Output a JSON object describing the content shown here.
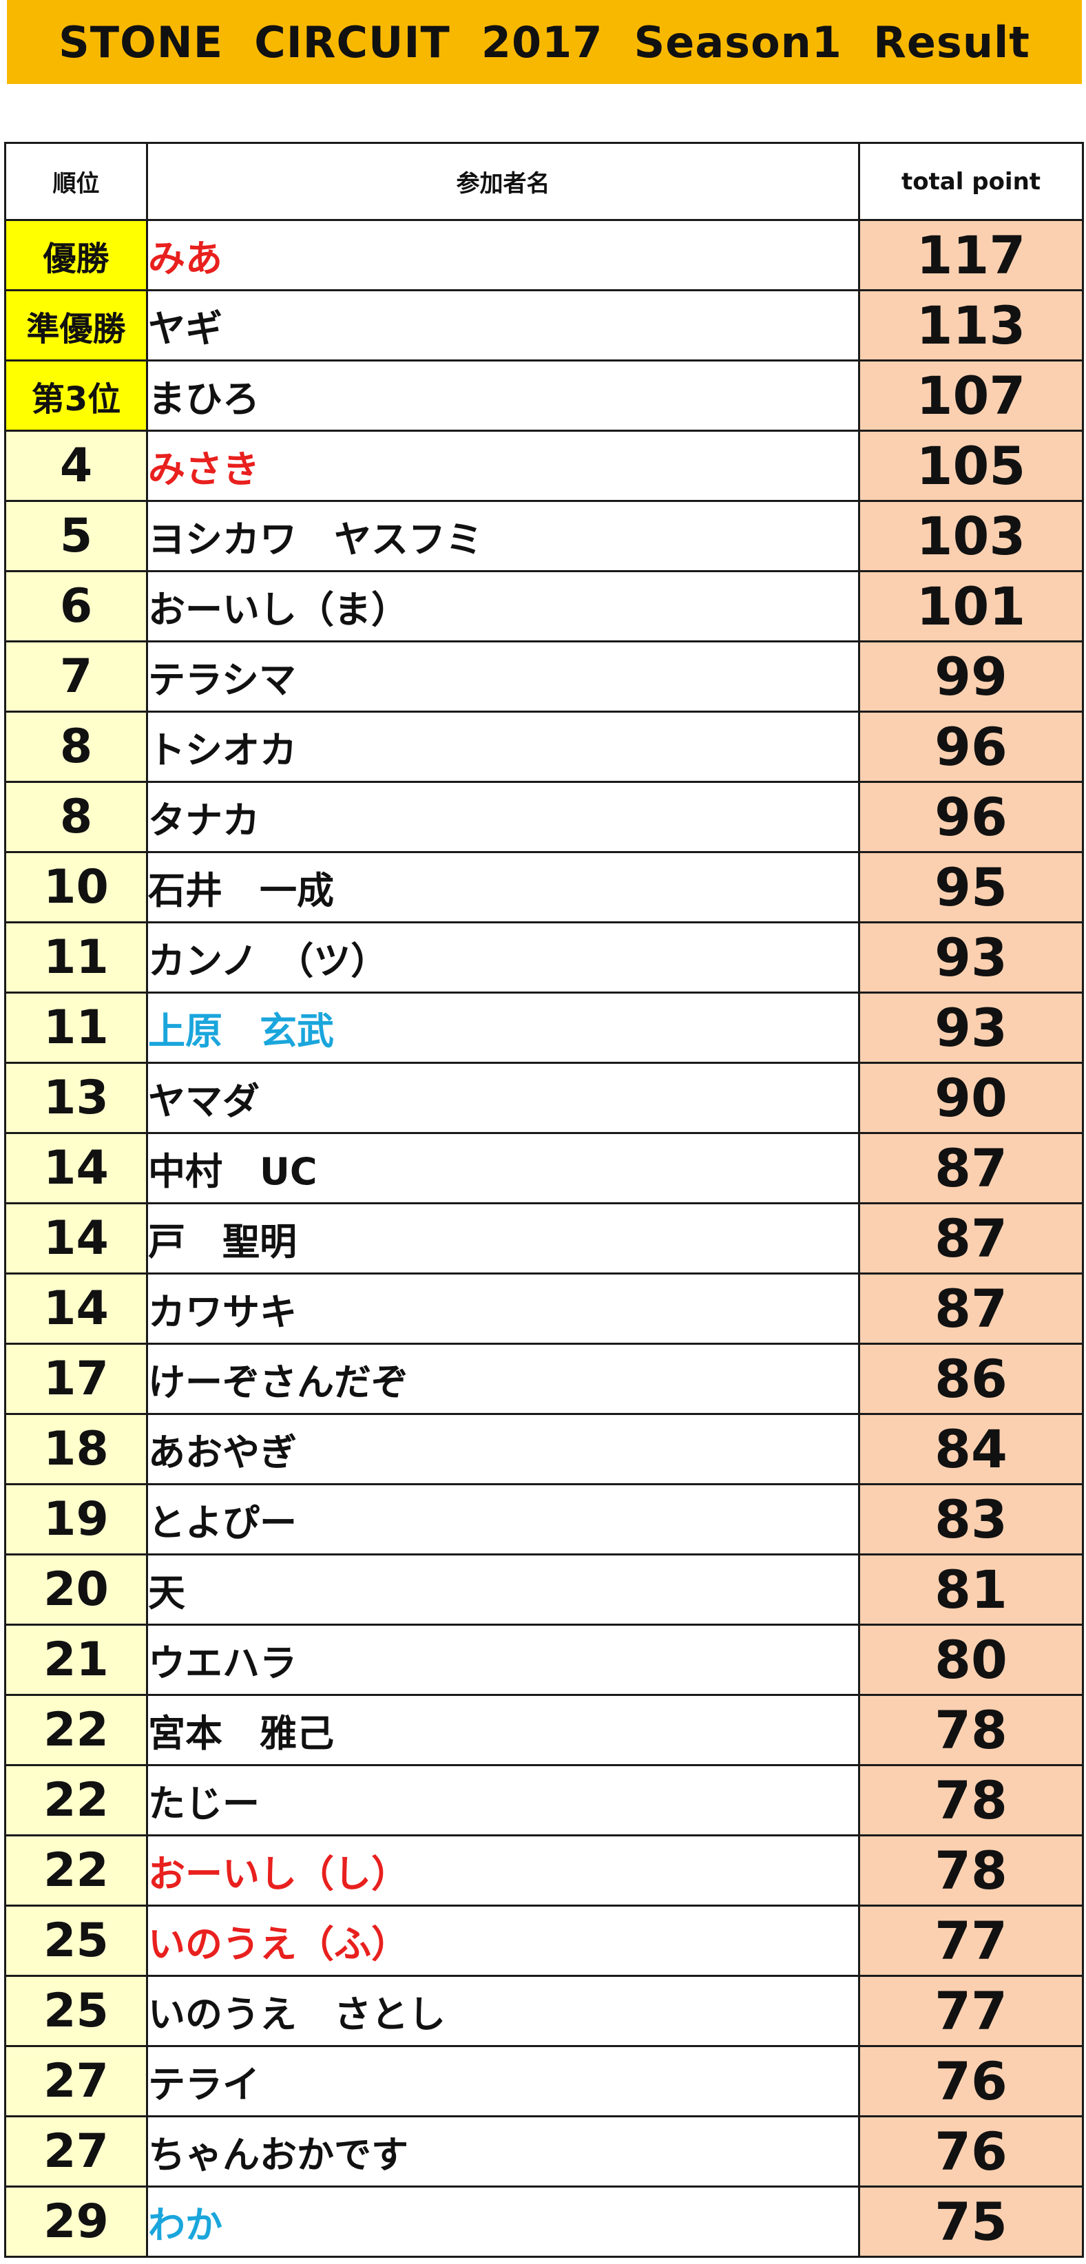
{
  "title": "STONE  CIRCUIT  2017  Season1  Result",
  "columns": {
    "rank": "順位",
    "name": "参加者名",
    "points": "total point"
  },
  "colors": {
    "title_bar": "#f9b800",
    "medal_cell": "#ffff00",
    "rank_cell": "#ffffcc",
    "points_cell": "#fbd0b0",
    "name_red": "#e8201e",
    "name_blue": "#1aa6dc"
  },
  "rows": [
    {
      "rank": "優勝",
      "name": "みあ",
      "points": "117",
      "name_color": "red",
      "medal": true
    },
    {
      "rank": "準優勝",
      "name": "ヤギ",
      "points": "113",
      "name_color": "default",
      "medal": true
    },
    {
      "rank": "第3位",
      "name": "まひろ",
      "points": "107",
      "name_color": "default",
      "medal": true
    },
    {
      "rank": "4",
      "name": "みさき",
      "points": "105",
      "name_color": "red",
      "medal": false
    },
    {
      "rank": "5",
      "name": "ヨシカワ　ヤスフミ",
      "points": "103",
      "name_color": "default",
      "medal": false
    },
    {
      "rank": "6",
      "name": "おーいし（ま）",
      "points": "101",
      "name_color": "default",
      "medal": false
    },
    {
      "rank": "7",
      "name": "テラシマ",
      "points": "99",
      "name_color": "default",
      "medal": false
    },
    {
      "rank": "8",
      "name": "トシオカ",
      "points": "96",
      "name_color": "default",
      "medal": false
    },
    {
      "rank": "8",
      "name": "タナカ",
      "points": "96",
      "name_color": "default",
      "medal": false
    },
    {
      "rank": "10",
      "name": "石井　一成",
      "points": "95",
      "name_color": "default",
      "medal": false
    },
    {
      "rank": "11",
      "name": "カンノ　（ツ）",
      "points": "93",
      "name_color": "default",
      "medal": false
    },
    {
      "rank": "11",
      "name": "上原　玄武",
      "points": "93",
      "name_color": "blue",
      "medal": false
    },
    {
      "rank": "13",
      "name": "ヤマダ",
      "points": "90",
      "name_color": "default",
      "medal": false
    },
    {
      "rank": "14",
      "name": "中村　UC",
      "points": "87",
      "name_color": "default",
      "medal": false
    },
    {
      "rank": "14",
      "name": "戸　聖明",
      "points": "87",
      "name_color": "default",
      "medal": false
    },
    {
      "rank": "14",
      "name": "カワサキ",
      "points": "87",
      "name_color": "default",
      "medal": false
    },
    {
      "rank": "17",
      "name": "けーぞさんだぞ",
      "points": "86",
      "name_color": "default",
      "medal": false
    },
    {
      "rank": "18",
      "name": "あおやぎ",
      "points": "84",
      "name_color": "default",
      "medal": false
    },
    {
      "rank": "19",
      "name": "とよぴー",
      "points": "83",
      "name_color": "default",
      "medal": false
    },
    {
      "rank": "20",
      "name": "天",
      "points": "81",
      "name_color": "default",
      "medal": false
    },
    {
      "rank": "21",
      "name": "ウエハラ",
      "points": "80",
      "name_color": "default",
      "medal": false
    },
    {
      "rank": "22",
      "name": "宮本　雅己",
      "points": "78",
      "name_color": "default",
      "medal": false
    },
    {
      "rank": "22",
      "name": "たじー",
      "points": "78",
      "name_color": "default",
      "medal": false
    },
    {
      "rank": "22",
      "name": "おーいし（し）",
      "points": "78",
      "name_color": "red",
      "medal": false
    },
    {
      "rank": "25",
      "name": "いのうえ（ふ）",
      "points": "77",
      "name_color": "red",
      "medal": false
    },
    {
      "rank": "25",
      "name": "いのうえ　さとし",
      "points": "77",
      "name_color": "default",
      "medal": false
    },
    {
      "rank": "27",
      "name": "テライ",
      "points": "76",
      "name_color": "default",
      "medal": false
    },
    {
      "rank": "27",
      "name": "ちゃんおかです",
      "points": "76",
      "name_color": "default",
      "medal": false
    },
    {
      "rank": "29",
      "name": "わか",
      "points": "75",
      "name_color": "blue",
      "medal": false
    }
  ]
}
